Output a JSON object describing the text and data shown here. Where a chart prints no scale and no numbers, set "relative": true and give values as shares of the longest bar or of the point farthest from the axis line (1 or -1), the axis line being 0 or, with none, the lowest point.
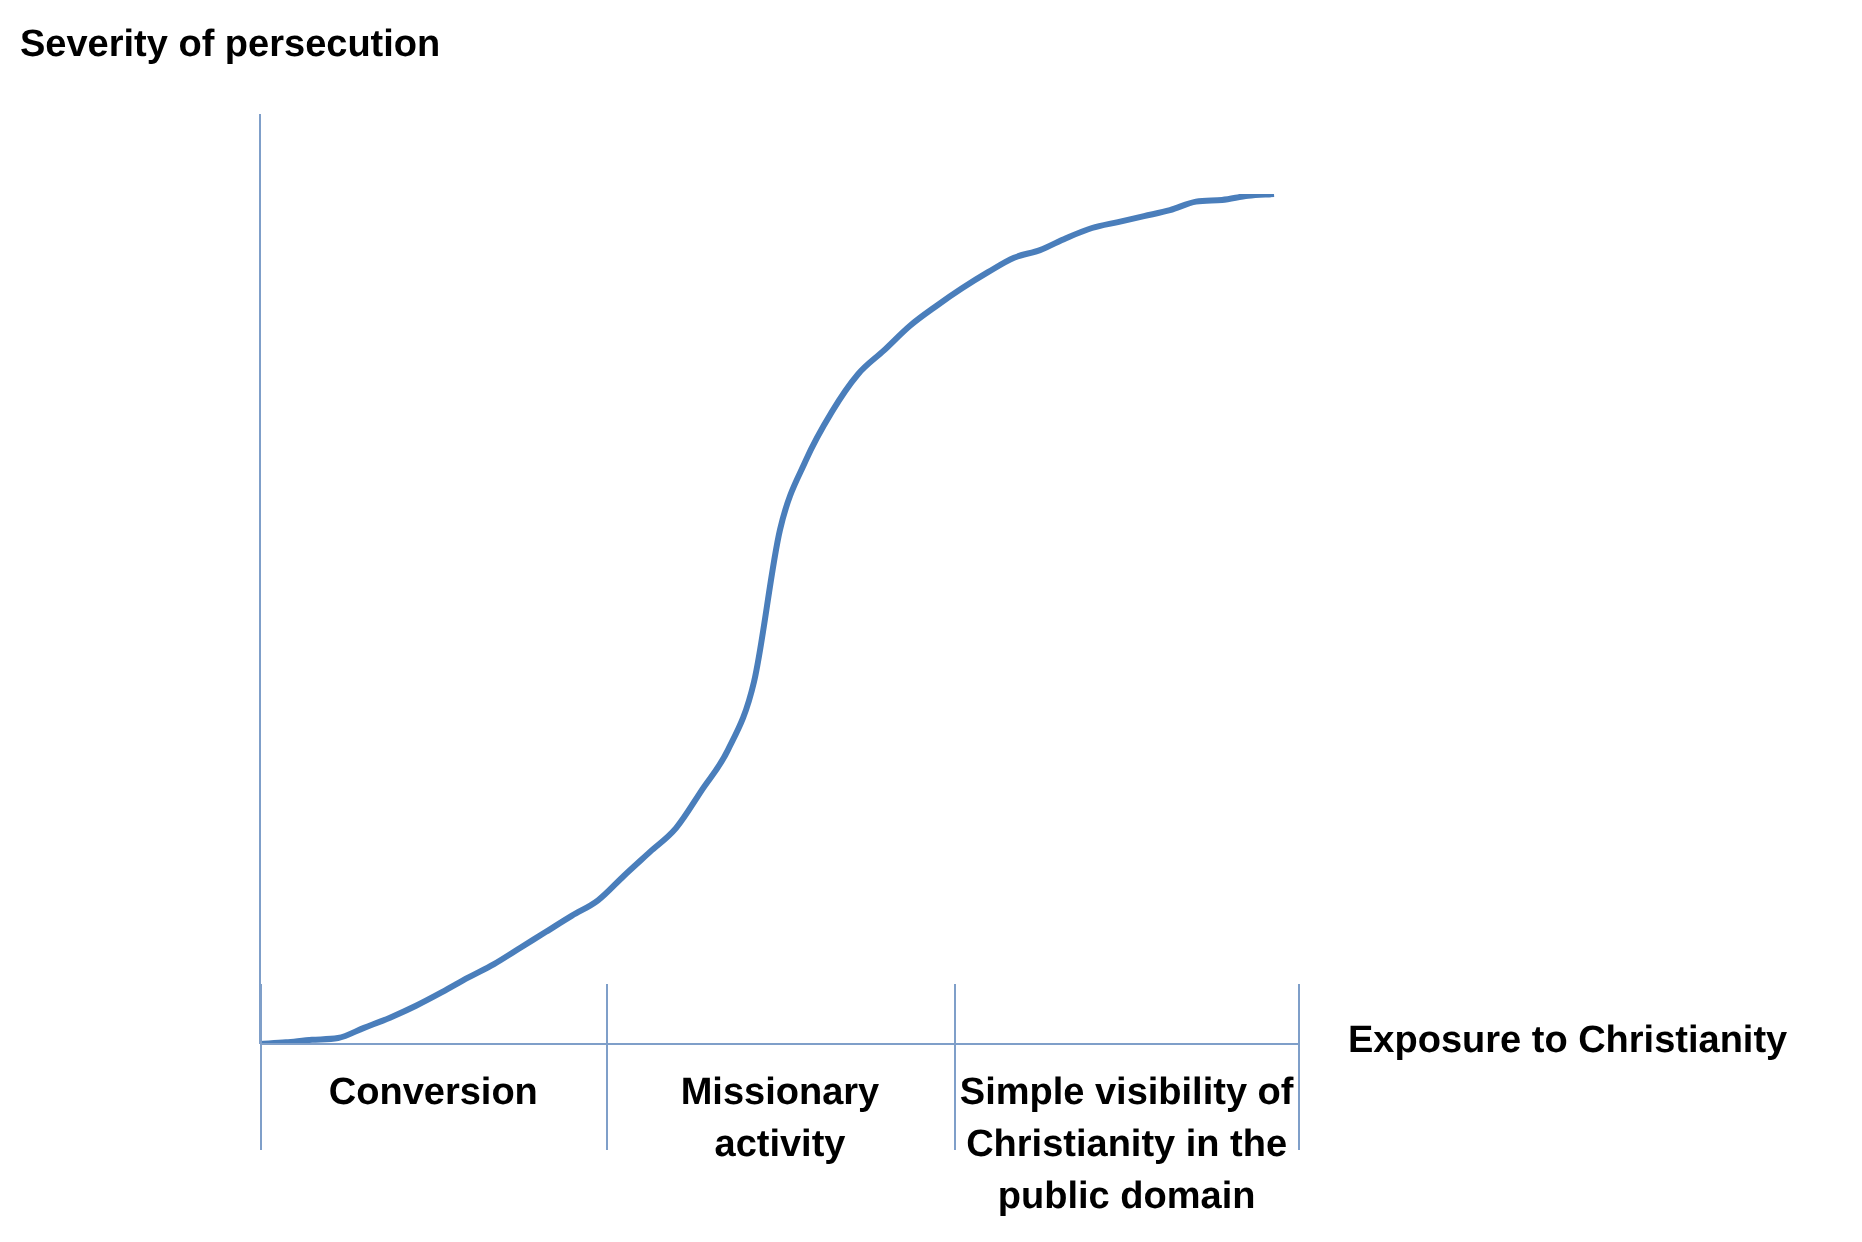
{
  "chart_data": {
    "type": "line",
    "relative": true,
    "xlabel": "Exposure to Christianity",
    "ylabel": "Severity of persecution",
    "marker": "none",
    "categories": [
      null,
      null,
      null,
      null,
      null,
      null,
      null,
      null,
      null,
      null,
      null,
      null,
      null,
      null,
      null,
      null,
      null,
      null,
      null,
      null,
      null,
      null,
      null,
      null,
      null,
      null,
      null,
      null,
      null,
      null,
      null,
      null,
      null,
      null,
      null,
      null,
      null,
      null,
      null,
      null,
      null
    ],
    "series": [
      {
        "color": "#4a7ebb",
        "values": [
          0,
          0.002,
          0.005,
          0.007,
          0.019,
          0.031,
          0.045,
          0.061,
          0.078,
          0.094,
          0.113,
          0.132,
          0.151,
          0.169,
          0.198,
          0.226,
          0.254,
          0.299,
          0.346,
          0.426,
          0.605,
          0.687,
          0.744,
          0.788,
          0.816,
          0.845,
          0.868,
          0.889,
          0.908,
          0.925,
          0.934,
          0.948,
          0.96,
          0.967,
          0.974,
          0.981,
          0.991,
          0.993,
          0.998,
          1,
          null
        ]
      }
    ],
    "annotations": [
      "Conversion",
      "Missionary activity",
      "Simple visibility of Christianity in the public domain"
    ]
  }
}
